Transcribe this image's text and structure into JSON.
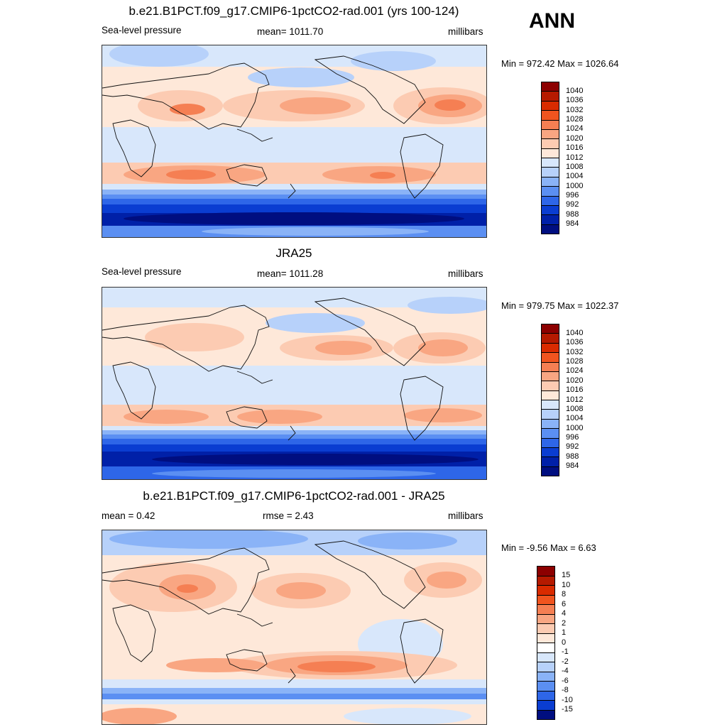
{
  "season": "ANN",
  "panels": [
    {
      "title": "b.e21.B1PCT.f09_g17.CMIP6-1pctCO2-rad.001 (yrs 100-124)",
      "left_label": "Sea-level pressure",
      "center_label": "mean= 1011.70",
      "units": "millibars",
      "minmax": "Min = 972.42 Max = 1026.64",
      "map_name": "model-slp-map"
    },
    {
      "title": "JRA25",
      "left_label": "Sea-level pressure",
      "center_label": "mean= 1011.28",
      "units": "millibars",
      "minmax": "Min = 979.75 Max = 1022.37",
      "map_name": "obs-slp-map"
    },
    {
      "title": "b.e21.B1PCT.f09_g17.CMIP6-1pctCO2-rad.001 - JRA25",
      "left_label": "mean =   0.42",
      "center_label": "rmse =   2.43",
      "units": "millibars",
      "minmax": "Min =  -9.56 Max =   6.63",
      "map_name": "difference-slp-map"
    }
  ],
  "colorbar_slp": {
    "labels": [
      "1040",
      "1036",
      "1032",
      "1028",
      "1024",
      "1020",
      "1016",
      "1012",
      "1008",
      "1004",
      "1000",
      "996",
      "992",
      "988",
      "984"
    ],
    "colors": [
      "#8c0000",
      "#b51a00",
      "#d92b00",
      "#f0541f",
      "#f57f53",
      "#f9a682",
      "#fccbb2",
      "#fee8d9",
      "#d8e7fb",
      "#b7d1fa",
      "#8ab3f7",
      "#5b8ff2",
      "#2e66e8",
      "#0a3dd1",
      "#0020a8",
      "#000e80"
    ]
  },
  "colorbar_diff": {
    "labels": [
      "15",
      "10",
      "8",
      "6",
      "4",
      "2",
      "1",
      "0",
      "-1",
      "-2",
      "-4",
      "-6",
      "-8",
      "-10",
      "-15"
    ],
    "colors": [
      "#8c0000",
      "#b51a00",
      "#d92b00",
      "#f0541f",
      "#f57f53",
      "#f9a682",
      "#fccbb2",
      "#fee8d9",
      "#ffffff",
      "#d8e7fb",
      "#b7d1fa",
      "#8ab3f7",
      "#5b8ff2",
      "#2e66e8",
      "#0a3dd1",
      "#000e80"
    ]
  }
}
